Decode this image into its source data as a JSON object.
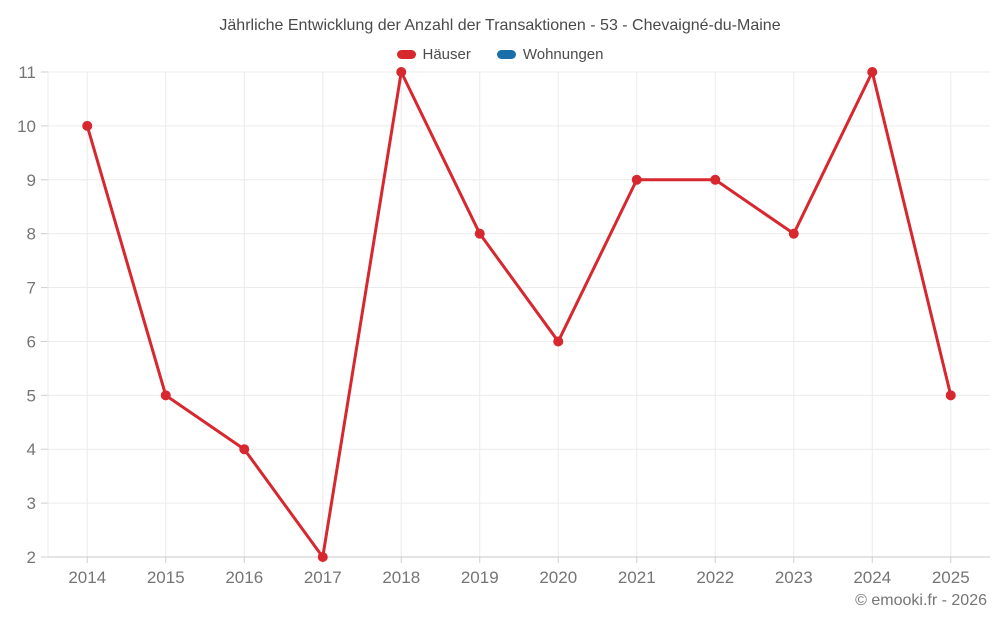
{
  "chart_data": {
    "type": "line",
    "title": "Jährliche Entwicklung der Anzahl der Transaktionen - 53 - Chevaigné-du-Maine",
    "categories": [
      "2014",
      "2015",
      "2016",
      "2017",
      "2018",
      "2019",
      "2020",
      "2021",
      "2022",
      "2023",
      "2024",
      "2025"
    ],
    "series": [
      {
        "name": "Häuser",
        "color": "#d7282f",
        "values": [
          10,
          5,
          4,
          2,
          11,
          8,
          6,
          9,
          9,
          8,
          11,
          5
        ]
      },
      {
        "name": "Wohnungen",
        "color": "#1a6fa8",
        "values": []
      }
    ],
    "ylim": [
      2,
      11
    ],
    "yticks": [
      2,
      3,
      4,
      5,
      6,
      7,
      8,
      9,
      10,
      11
    ],
    "grid": true,
    "legend_position": "top",
    "xlabel": "",
    "ylabel": ""
  },
  "footer": {
    "copyright": "© emooki.fr - 2026"
  },
  "colors": {
    "background": "#ffffff",
    "grid": "#ececec",
    "axis": "#c8c8c8",
    "tick": "#cfcfcf",
    "axis_label": "#757575",
    "title_text": "#4a4a4a",
    "legend_text": "#4d4d4d"
  }
}
